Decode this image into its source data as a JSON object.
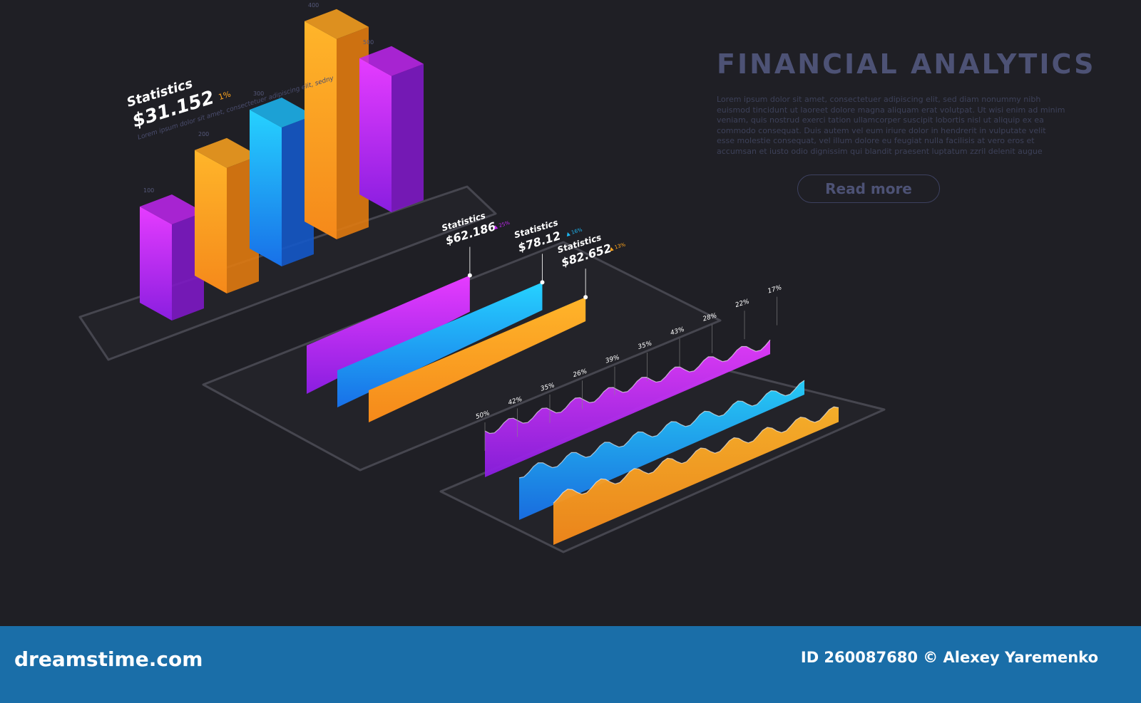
{
  "header": {
    "title": "FINANCIAL ANALYTICS",
    "body_text": "Lorem ipsum dolor sit amet, consectetuer adipiscing elit, sed diam nonummy nibh euismod tincidunt ut laoreet dolore magna aliquam erat volutpat. Ut wisi enim ad minim veniam, quis nostrud exerci tation ullamcorper suscipit lobortis nisl ut aliquip ex ea commodo consequat. Duis autem vel eum iriure dolor in hendrerit in vulputate velit esse molestie consequat, vel illum dolore eu feugiat nulla facilisis at vero eros et accumsan et iusto odio dignissim qui blandit praesent luptatum zzril delenit augue",
    "read_more_label": "Read more"
  },
  "colors": {
    "background": "#1f1f25",
    "purple": "#c026f0",
    "orange": "#ffa51e",
    "blue": "#1cb8f5",
    "footer": "#1a6ea8"
  },
  "chart_data": [
    {
      "type": "bar",
      "style": "isometric-3d",
      "stat_label": "Statistics",
      "stat_value": "$31.152",
      "stat_change": "1%",
      "stat_caption": "Lorem ipsum dolor sit amet, consectetuer adipiscing elit, sedny",
      "tick_labels": [
        "100",
        "200",
        "300",
        "400",
        "500"
      ],
      "values": [
        180,
        235,
        260,
        375,
        255
      ],
      "bar_colors": [
        "purple",
        "orange",
        "blue",
        "orange",
        "purple"
      ]
    },
    {
      "type": "bar",
      "style": "isometric-horizontal",
      "series": [
        {
          "label": "Statistics",
          "value_text": "$62.186",
          "value": 62.186,
          "change": "25%",
          "color": "purple"
        },
        {
          "label": "Statistics",
          "value_text": "$78.12",
          "value": 78.12,
          "change": "16%",
          "color": "blue"
        },
        {
          "label": "Statistics",
          "value_text": "$82.652",
          "value": 82.652,
          "change": "13%",
          "color": "orange"
        }
      ]
    },
    {
      "type": "area",
      "style": "isometric-wave",
      "point_labels": [
        "50%",
        "42%",
        "35%",
        "26%",
        "39%",
        "35%",
        "43%",
        "28%",
        "22%",
        "17%"
      ],
      "series_colors": [
        "purple",
        "blue",
        "orange"
      ]
    }
  ],
  "footer": {
    "logo": "dreamstime.com",
    "credit": "ID 260087680 © Alexey Yaremenko"
  }
}
